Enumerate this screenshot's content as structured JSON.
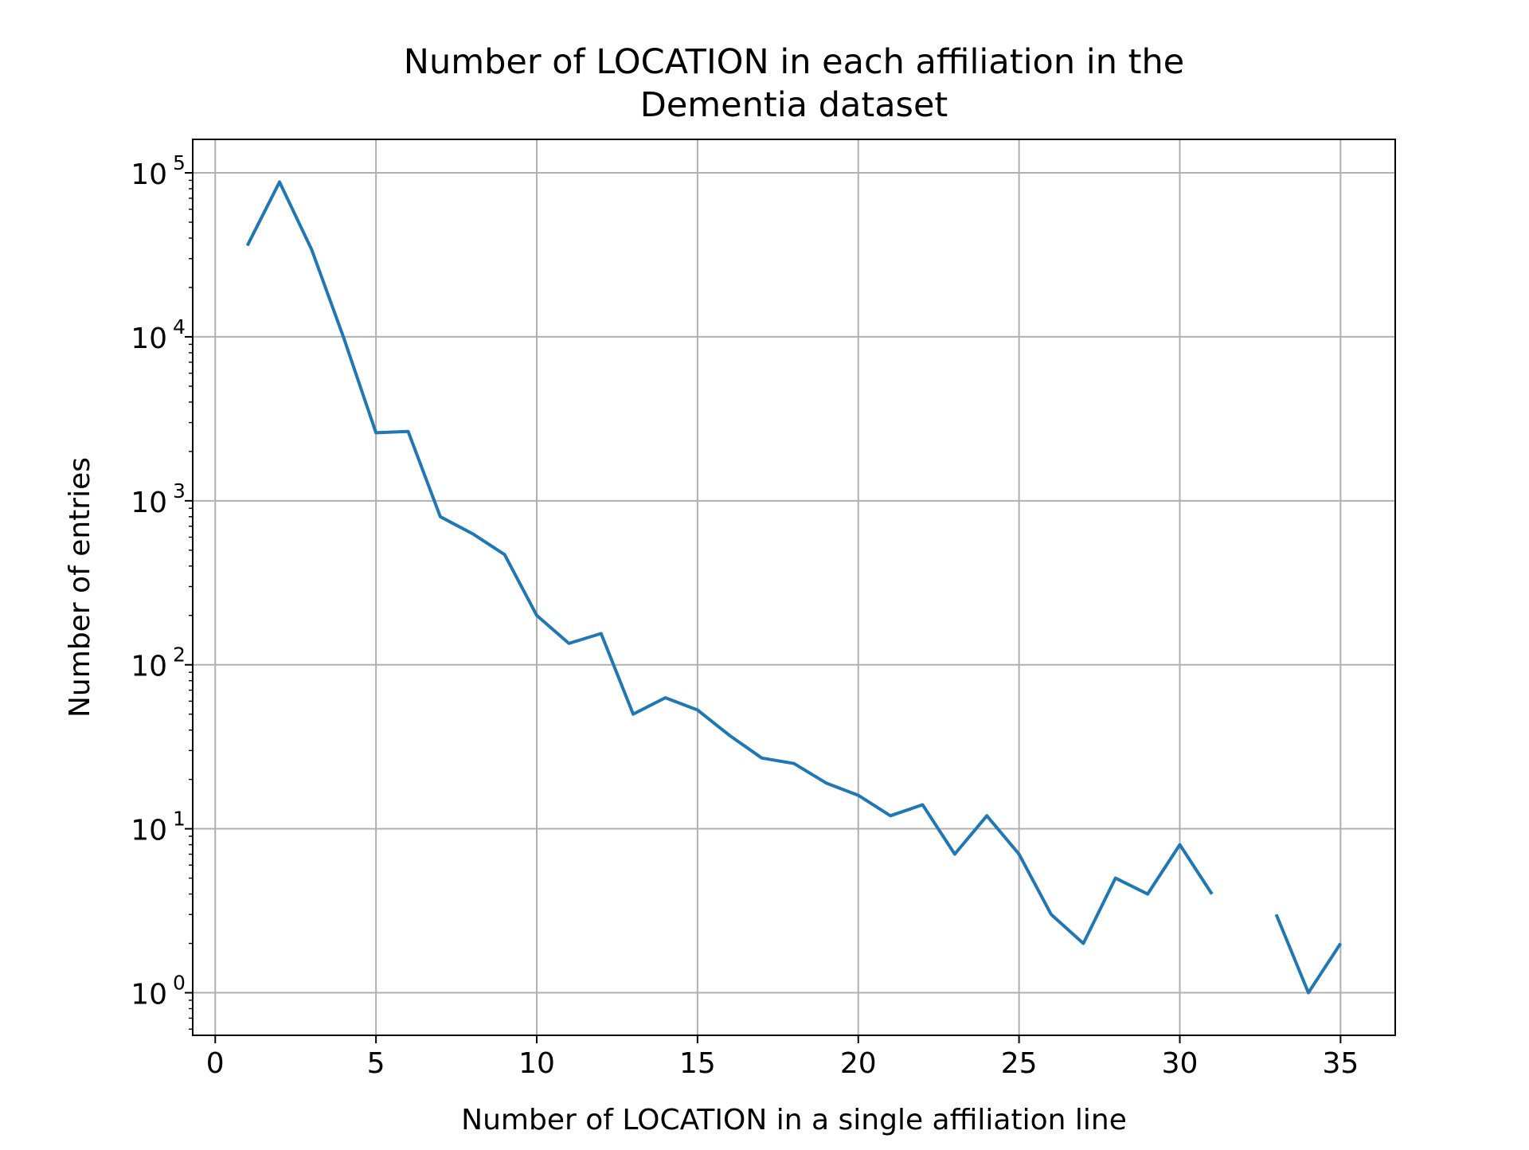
{
  "chart_data": {
    "type": "line",
    "title_lines": [
      "Number of LOCATION in each affiliation in the",
      "Dementia dataset"
    ],
    "xlabel": "Number of LOCATION in a single affiliation line",
    "ylabel": "Number of entries",
    "xlim": [
      -0.7,
      36.7
    ],
    "ylim": [
      0.55,
      160000
    ],
    "y_scale": "log",
    "grid": true,
    "legend": "none",
    "line_color": "#1f77b4",
    "grid_color": "#b0b0b0",
    "x_ticks": [
      0,
      5,
      10,
      15,
      20,
      25,
      30,
      35
    ],
    "x_tick_labels": [
      "0",
      "5",
      "10",
      "15",
      "20",
      "25",
      "30",
      "35"
    ],
    "y_ticks": [
      {
        "value": 1,
        "base": "10",
        "exp": "0"
      },
      {
        "value": 10,
        "base": "10",
        "exp": "1"
      },
      {
        "value": 100,
        "base": "10",
        "exp": "2"
      },
      {
        "value": 1000,
        "base": "10",
        "exp": "3"
      },
      {
        "value": 10000,
        "base": "10",
        "exp": "4"
      },
      {
        "value": 100000,
        "base": "10",
        "exp": "5"
      }
    ],
    "series": [
      {
        "x": [
          1,
          2,
          3,
          4,
          5,
          6,
          7,
          8,
          9,
          10,
          11,
          12,
          13,
          14,
          15,
          16,
          17,
          18,
          19,
          20,
          21,
          22,
          23,
          24,
          25,
          26,
          27,
          28,
          29,
          30,
          31,
          32,
          33,
          34,
          35
        ],
        "values": [
          36000,
          88000,
          34000,
          9800,
          2600,
          2650,
          800,
          630,
          470,
          200,
          135,
          155,
          50,
          63,
          53,
          37,
          27,
          25,
          19,
          16,
          12,
          14,
          7,
          12,
          7,
          3,
          2,
          5,
          4,
          8,
          4,
          null,
          3,
          1,
          2
        ]
      }
    ]
  }
}
